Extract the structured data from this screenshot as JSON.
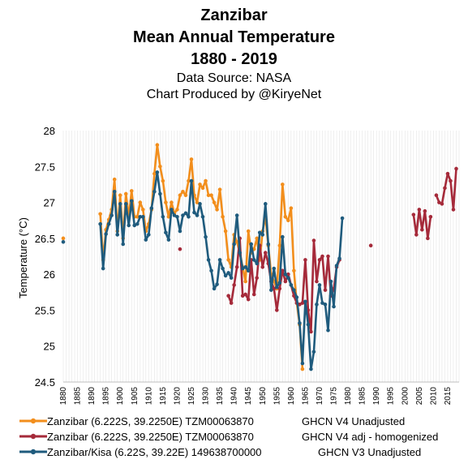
{
  "chart_data": {
    "type": "line",
    "title_lines": [
      "Zanzibar",
      "Mean Annual Temperature",
      "1880 - 2019"
    ],
    "subtitle_lines": [
      "Data Source: NASA",
      "Chart Produced by @KiryeNet"
    ],
    "ylabel": "Temperature (°C)",
    "xlabel": "",
    "xlim": [
      1880,
      2019
    ],
    "ylim": [
      24.5,
      28
    ],
    "yticks": [
      24.5,
      25,
      25.5,
      26,
      26.5,
      27,
      27.5,
      28
    ],
    "ytick_labels": [
      "24.5",
      "25",
      "25.5",
      "26",
      "26.5",
      "27",
      "27.5",
      "28"
    ],
    "xticks": [
      1880,
      1885,
      1890,
      1895,
      1900,
      1905,
      1910,
      1915,
      1920,
      1925,
      1930,
      1935,
      1940,
      1945,
      1950,
      1955,
      1960,
      1965,
      1970,
      1975,
      1980,
      1985,
      1990,
      1995,
      2000,
      2005,
      2010,
      2015
    ],
    "xtick_labels": [
      "1880",
      "1885",
      "1890",
      "1895",
      "1900",
      "1905",
      "1910",
      "1915",
      "1920",
      "1925",
      "1930",
      "1935",
      "1940",
      "1945",
      "1950",
      "1955",
      "1960",
      "1965",
      "1970",
      "1975",
      "1980",
      "1985",
      "1990",
      "1995",
      "2000",
      "2005",
      "2010",
      "2015"
    ],
    "grid": "vertical",
    "legend_position": "bottom",
    "series": [
      {
        "name": "Zanzibar (6.222S, 39.2250E) TZM00063870",
        "source": "GHCN V4 Unadjusted",
        "color": "#f28e1c",
        "points": [
          [
            1880,
            26.5
          ],
          [
            1893,
            26.84
          ],
          [
            1894,
            26.2
          ],
          [
            1895,
            26.62
          ],
          [
            1896,
            26.76
          ],
          [
            1897,
            26.9
          ],
          [
            1898,
            27.32
          ],
          [
            1899,
            26.6
          ],
          [
            1900,
            27.1
          ],
          [
            1901,
            26.5
          ],
          [
            1902,
            27.12
          ],
          [
            1903,
            26.8
          ],
          [
            1904,
            27.16
          ],
          [
            1905,
            26.8
          ],
          [
            1906,
            26.8
          ],
          [
            1907,
            27.0
          ],
          [
            1908,
            26.9
          ],
          [
            1909,
            26.6
          ],
          [
            1910,
            26.7
          ],
          [
            1911,
            26.9
          ],
          [
            1912,
            27.4
          ],
          [
            1913,
            27.8
          ],
          [
            1914,
            27.5
          ],
          [
            1915,
            27.3
          ],
          [
            1916,
            27.0
          ],
          [
            1917,
            26.8
          ],
          [
            1918,
            27.0
          ],
          [
            1919,
            26.85
          ],
          [
            1920,
            26.9
          ],
          [
            1921,
            27.1
          ],
          [
            1922,
            27.15
          ],
          [
            1923,
            27.1
          ],
          [
            1924,
            27.3
          ],
          [
            1925,
            27.6
          ],
          [
            1926,
            27.1
          ],
          [
            1927,
            27.0
          ],
          [
            1928,
            27.25
          ],
          [
            1929,
            27.2
          ],
          [
            1930,
            27.3
          ],
          [
            1931,
            27.1
          ],
          [
            1932,
            27.1
          ],
          [
            1933,
            27.0
          ],
          [
            1934,
            26.9
          ],
          [
            1935,
            27.18
          ],
          [
            1936,
            26.8
          ],
          [
            1937,
            26.6
          ],
          [
            1938,
            26.2
          ],
          [
            1939,
            26.1
          ],
          [
            1940,
            26.55
          ],
          [
            1941,
            26.45
          ],
          [
            1942,
            26.3
          ],
          [
            1943,
            26.1
          ],
          [
            1944,
            25.9
          ],
          [
            1945,
            26.6
          ],
          [
            1946,
            26.3
          ],
          [
            1947,
            26.35
          ],
          [
            1948,
            26.5
          ],
          [
            1949,
            26.2
          ],
          [
            1950,
            26.6
          ],
          [
            1951,
            26.8
          ],
          [
            1952,
            26.4
          ],
          [
            1953,
            26.0
          ],
          [
            1954,
            25.9
          ],
          [
            1955,
            25.8
          ],
          [
            1956,
            26.4
          ],
          [
            1957,
            27.25
          ],
          [
            1958,
            26.8
          ],
          [
            1959,
            26.75
          ],
          [
            1960,
            26.92
          ],
          [
            1961,
            26.05
          ],
          [
            1962,
            25.6
          ],
          [
            1963,
            25.3
          ],
          [
            1964,
            24.68
          ]
        ]
      },
      {
        "name": "Zanzibar (6.222S, 39.2250E) TZM00063870",
        "source": "GHCN V4 adj - homogenized",
        "color": "#a52a3a",
        "points": [
          [
            1921,
            26.35
          ],
          [
            1938,
            25.7
          ],
          [
            1939,
            25.6
          ],
          [
            1940,
            25.85
          ],
          [
            1941,
            26.1
          ],
          [
            1942,
            26.5
          ],
          [
            1943,
            25.7
          ],
          [
            1944,
            25.72
          ],
          [
            1945,
            25.65
          ],
          [
            1946,
            26.2
          ],
          [
            1947,
            25.72
          ],
          [
            1948,
            25.95
          ],
          [
            1949,
            26.4
          ],
          [
            1950,
            26.1
          ],
          [
            1951,
            26.3
          ],
          [
            1952,
            26.15
          ],
          [
            1953,
            25.9
          ],
          [
            1954,
            25.8
          ],
          [
            1955,
            25.5
          ],
          [
            1956,
            25.8
          ],
          [
            1957,
            26.05
          ],
          [
            1958,
            25.9
          ],
          [
            1959,
            26.0
          ],
          [
            1960,
            25.85
          ],
          [
            1961,
            25.7
          ],
          [
            1962,
            25.6
          ],
          [
            1963,
            25.58
          ],
          [
            1964,
            25.6
          ],
          [
            1965,
            26.2
          ],
          [
            1966,
            25.5
          ],
          [
            1967,
            25.2
          ],
          [
            1968,
            26.47
          ],
          [
            1969,
            25.9
          ],
          [
            1970,
            26.2
          ],
          [
            1971,
            26.25
          ],
          [
            1972,
            25.78
          ],
          [
            1973,
            26.25
          ],
          [
            1974,
            25.7
          ],
          [
            1975,
            25.8
          ],
          [
            1976,
            26.1
          ],
          [
            1977,
            26.2
          ],
          [
            1988,
            26.4
          ],
          [
            2003,
            26.83
          ],
          [
            2004,
            26.55
          ],
          [
            2005,
            26.9
          ],
          [
            2006,
            26.62
          ],
          [
            2007,
            26.88
          ],
          [
            2008,
            26.5
          ],
          [
            2009,
            26.8
          ],
          [
            2011,
            27.1
          ],
          [
            2012,
            27.0
          ],
          [
            2013,
            26.98
          ],
          [
            2014,
            27.2
          ],
          [
            2015,
            27.4
          ],
          [
            2016,
            27.3
          ],
          [
            2017,
            26.9
          ],
          [
            2018,
            27.47
          ]
        ]
      },
      {
        "name": "Zanzibar/Kisa (6.22S, 39.22E) 149638700000",
        "source": "GHCN V3 Unadjusted",
        "color": "#1f5b7d",
        "points": [
          [
            1880,
            26.45
          ],
          [
            1893,
            26.7
          ],
          [
            1894,
            26.08
          ],
          [
            1895,
            26.56
          ],
          [
            1896,
            26.7
          ],
          [
            1897,
            26.82
          ],
          [
            1898,
            27.15
          ],
          [
            1899,
            26.55
          ],
          [
            1900,
            26.98
          ],
          [
            1901,
            26.42
          ],
          [
            1902,
            26.98
          ],
          [
            1903,
            26.68
          ],
          [
            1904,
            27.02
          ],
          [
            1905,
            26.68
          ],
          [
            1906,
            26.7
          ],
          [
            1907,
            26.8
          ],
          [
            1908,
            26.8
          ],
          [
            1909,
            26.48
          ],
          [
            1910,
            26.55
          ],
          [
            1911,
            26.92
          ],
          [
            1912,
            27.15
          ],
          [
            1913,
            27.42
          ],
          [
            1914,
            27.12
          ],
          [
            1915,
            26.8
          ],
          [
            1916,
            26.58
          ],
          [
            1917,
            26.48
          ],
          [
            1918,
            26.9
          ],
          [
            1919,
            26.82
          ],
          [
            1920,
            26.8
          ],
          [
            1921,
            26.6
          ],
          [
            1922,
            26.82
          ],
          [
            1923,
            26.85
          ],
          [
            1924,
            26.8
          ],
          [
            1925,
            27.3
          ],
          [
            1926,
            26.86
          ],
          [
            1927,
            26.82
          ],
          [
            1928,
            26.98
          ],
          [
            1929,
            26.8
          ],
          [
            1930,
            26.52
          ],
          [
            1931,
            26.2
          ],
          [
            1932,
            26.05
          ],
          [
            1933,
            25.8
          ],
          [
            1934,
            25.86
          ],
          [
            1935,
            26.2
          ],
          [
            1936,
            26.08
          ],
          [
            1937,
            25.98
          ],
          [
            1938,
            26.02
          ],
          [
            1939,
            25.95
          ],
          [
            1940,
            26.42
          ],
          [
            1941,
            26.82
          ],
          [
            1942,
            26.3
          ],
          [
            1943,
            26.08
          ],
          [
            1944,
            26.1
          ],
          [
            1945,
            26.05
          ],
          [
            1946,
            26.42
          ],
          [
            1947,
            26.2
          ],
          [
            1948,
            26.15
          ],
          [
            1949,
            26.58
          ],
          [
            1950,
            26.55
          ],
          [
            1951,
            26.98
          ],
          [
            1952,
            26.42
          ],
          [
            1953,
            25.78
          ],
          [
            1954,
            26.08
          ],
          [
            1955,
            25.82
          ],
          [
            1956,
            25.88
          ],
          [
            1957,
            26.52
          ],
          [
            1958,
            26.0
          ],
          [
            1959,
            25.95
          ],
          [
            1960,
            25.85
          ],
          [
            1961,
            25.78
          ],
          [
            1962,
            25.68
          ],
          [
            1963,
            25.32
          ],
          [
            1964,
            24.76
          ],
          [
            1965,
            25.62
          ],
          [
            1966,
            25.3
          ],
          [
            1967,
            24.68
          ],
          [
            1968,
            24.92
          ],
          [
            1969,
            25.58
          ],
          [
            1970,
            25.85
          ],
          [
            1971,
            25.6
          ],
          [
            1972,
            25.58
          ],
          [
            1973,
            25.22
          ],
          [
            1974,
            25.9
          ],
          [
            1975,
            25.55
          ],
          [
            1976,
            26.12
          ],
          [
            1977,
            26.22
          ],
          [
            1978,
            26.78
          ]
        ]
      }
    ]
  }
}
